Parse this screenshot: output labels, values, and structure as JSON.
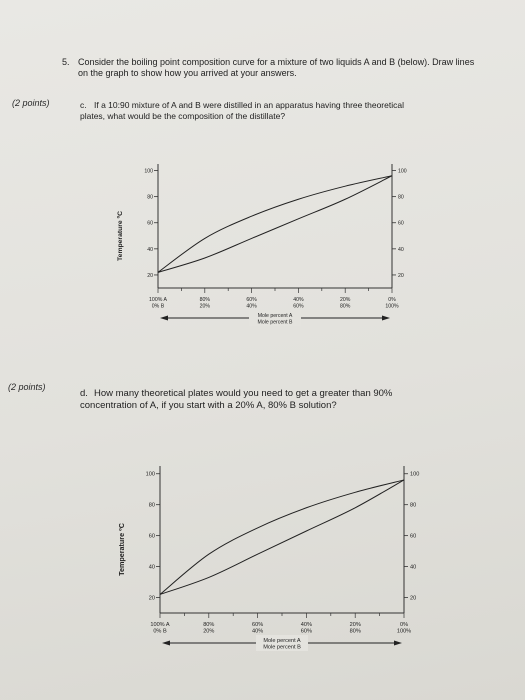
{
  "question": {
    "number": "5.",
    "text": "Consider the boiling point composition curve for a mixture of two liquids A and B (below). Draw lines on the graph to show how you arrived at your answers."
  },
  "part_c": {
    "points": "(2 points)",
    "letter": "c.",
    "text": "If a 10:90 mixture of A and B were distilled in an apparatus having three theoretical plates, what would be the composition of the distillate?"
  },
  "part_d": {
    "points": "(2 points)",
    "letter": "d.",
    "text": "How many theoretical plates would you need to get a greater than 90% concentration of A, if you start with a 20% A, 80% B solution?"
  },
  "chart_data": [
    {
      "type": "line",
      "ylabel": "Temperature ºC",
      "y_ticks_left": [
        "100",
        "80",
        "60",
        "40",
        "20"
      ],
      "y_ticks_right": [
        "100",
        "80",
        "60",
        "40",
        "20"
      ],
      "x_ticks": [
        {
          "a": "100% A",
          "b": "0% B"
        },
        {
          "a": "80%",
          "b": "20%"
        },
        {
          "a": "60%",
          "b": "40%"
        },
        {
          "a": "40%",
          "b": "60%"
        },
        {
          "a": "20%",
          "b": "80%"
        },
        {
          "a": "0%",
          "b": "100%"
        }
      ],
      "xlabel_a": "Mole percent A",
      "xlabel_b": "Mole percent B",
      "xlim": [
        0,
        100
      ],
      "ylim": [
        10,
        105
      ],
      "series": [
        {
          "x": [
            0,
            20,
            40,
            60,
            80,
            100
          ],
          "y": [
            22,
            48,
            65,
            78,
            88,
            96
          ]
        },
        {
          "x": [
            0,
            20,
            40,
            60,
            80,
            100
          ],
          "y": [
            22,
            33,
            48,
            63,
            78,
            96
          ]
        }
      ]
    },
    {
      "type": "line",
      "ylabel": "Temperature ºC",
      "y_ticks_left": [
        "100",
        "80",
        "60",
        "40",
        "20"
      ],
      "y_ticks_right": [
        "100",
        "80",
        "60",
        "40",
        "20"
      ],
      "x_ticks": [
        {
          "a": "100% A",
          "b": "0% B"
        },
        {
          "a": "80%",
          "b": "20%"
        },
        {
          "a": "60%",
          "b": "40%"
        },
        {
          "a": "40%",
          "b": "60%"
        },
        {
          "a": "20%",
          "b": "80%"
        },
        {
          "a": "0%",
          "b": "100%"
        }
      ],
      "xlabel_a": "Mole percent A",
      "xlabel_b": "Mole percent B",
      "xlim": [
        0,
        100
      ],
      "ylim": [
        10,
        105
      ],
      "series": [
        {
          "x": [
            0,
            20,
            40,
            60,
            80,
            100
          ],
          "y": [
            22,
            48,
            65,
            78,
            88,
            96
          ]
        },
        {
          "x": [
            0,
            20,
            40,
            60,
            80,
            100
          ],
          "y": [
            22,
            33,
            48,
            63,
            78,
            96
          ]
        }
      ]
    }
  ]
}
